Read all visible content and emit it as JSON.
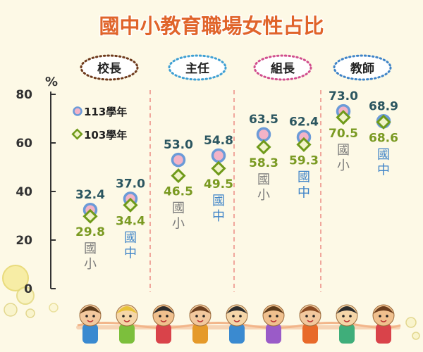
{
  "title": "國中小教育職場女性占比",
  "chart_data": {
    "type": "scatter",
    "ylim": [
      0,
      80
    ],
    "ylabel": "%",
    "yticks": [
      0,
      20,
      40,
      60,
      80
    ],
    "legend": {
      "placement": "top-left",
      "items": [
        {
          "label": "113學年",
          "marker": "circle",
          "color": "#f3b3c7",
          "edge": "#6b9bd8"
        },
        {
          "label": "103學年",
          "marker": "diamond",
          "color": "#f1f3c8",
          "edge": "#6f9a1a"
        }
      ]
    },
    "groups": [
      {
        "name": "校長",
        "pill_border": "#6e3a1c",
        "points": [
          {
            "level": "國小",
            "level_color": "#7a7a7a",
            "y113": 32.4,
            "y103": 29.8
          },
          {
            "level": "國中",
            "level_color": "#3f84c8",
            "y113": 37.0,
            "y103": 34.4
          }
        ]
      },
      {
        "name": "主任",
        "pill_border": "#3fa0d4",
        "points": [
          {
            "level": "國小",
            "level_color": "#7a7a7a",
            "y113": 53.0,
            "y103": 46.5
          },
          {
            "level": "國中",
            "level_color": "#3f84c8",
            "y113": 54.8,
            "y103": 49.5
          }
        ]
      },
      {
        "name": "組長",
        "pill_border": "#d14f8e",
        "points": [
          {
            "level": "國小",
            "level_color": "#7a7a7a",
            "y113": 63.5,
            "y103": 58.3
          },
          {
            "level": "國中",
            "level_color": "#3f84c8",
            "y113": 62.4,
            "y103": 59.3
          }
        ]
      },
      {
        "name": "教師",
        "pill_border": "#3f84c8",
        "points": [
          {
            "level": "國小",
            "level_color": "#7a7a7a",
            "y113": 73.0,
            "y103": 70.5
          },
          {
            "level": "國中",
            "level_color": "#3f84c8",
            "y113": 68.9,
            "y103": 68.6
          }
        ]
      }
    ],
    "colors": {
      "label113": "#2b5660",
      "label103": "#7a9a22",
      "title": "#e0642a",
      "axis": "#333333",
      "divider": "#f0a79c"
    }
  }
}
